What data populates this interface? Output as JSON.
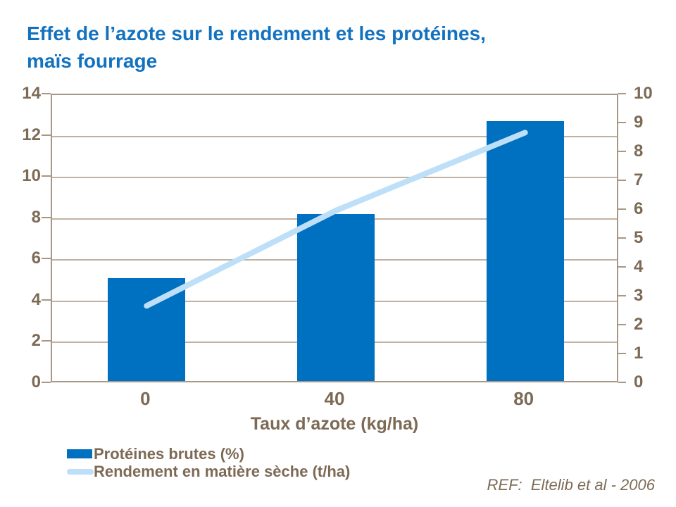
{
  "title": {
    "line1": "Effet de l’azote sur le rendement et les protéines,",
    "line2": "maïs fourrage"
  },
  "chart_data": {
    "type": "bar+line",
    "categories": [
      "0",
      "40",
      "80"
    ],
    "series": [
      {
        "name": "Protéines brutes (%)",
        "type": "bar",
        "axis": "left",
        "values": [
          5.0,
          8.1,
          12.6
        ],
        "color": "#0070C0"
      },
      {
        "name": "Rendement en matière sèche (t/ha)",
        "type": "line",
        "axis": "right",
        "values": [
          2.7,
          6.0,
          8.7
        ],
        "color": "#BDDFF8"
      }
    ],
    "xlabel": "Taux d’azote (kg/ha)",
    "left_axis": {
      "min": 0,
      "max": 14,
      "step": 2,
      "ticks": [
        0,
        2,
        4,
        6,
        8,
        10,
        12,
        14
      ]
    },
    "right_axis": {
      "min": 0,
      "max": 10,
      "step": 1,
      "ticks": [
        0,
        1,
        2,
        3,
        4,
        5,
        6,
        7,
        8,
        9,
        10
      ]
    },
    "grid": true,
    "legend_position": "bottom-left"
  },
  "footer": {
    "ref": "REF:  Eltelib et al - 2006"
  },
  "colors": {
    "title": "#1272BF",
    "bar": "#0070C0",
    "line": "#BDDFF8",
    "axis_text": "#7C6A55",
    "grid": "#C0B2A2",
    "frame": "#A89785"
  }
}
